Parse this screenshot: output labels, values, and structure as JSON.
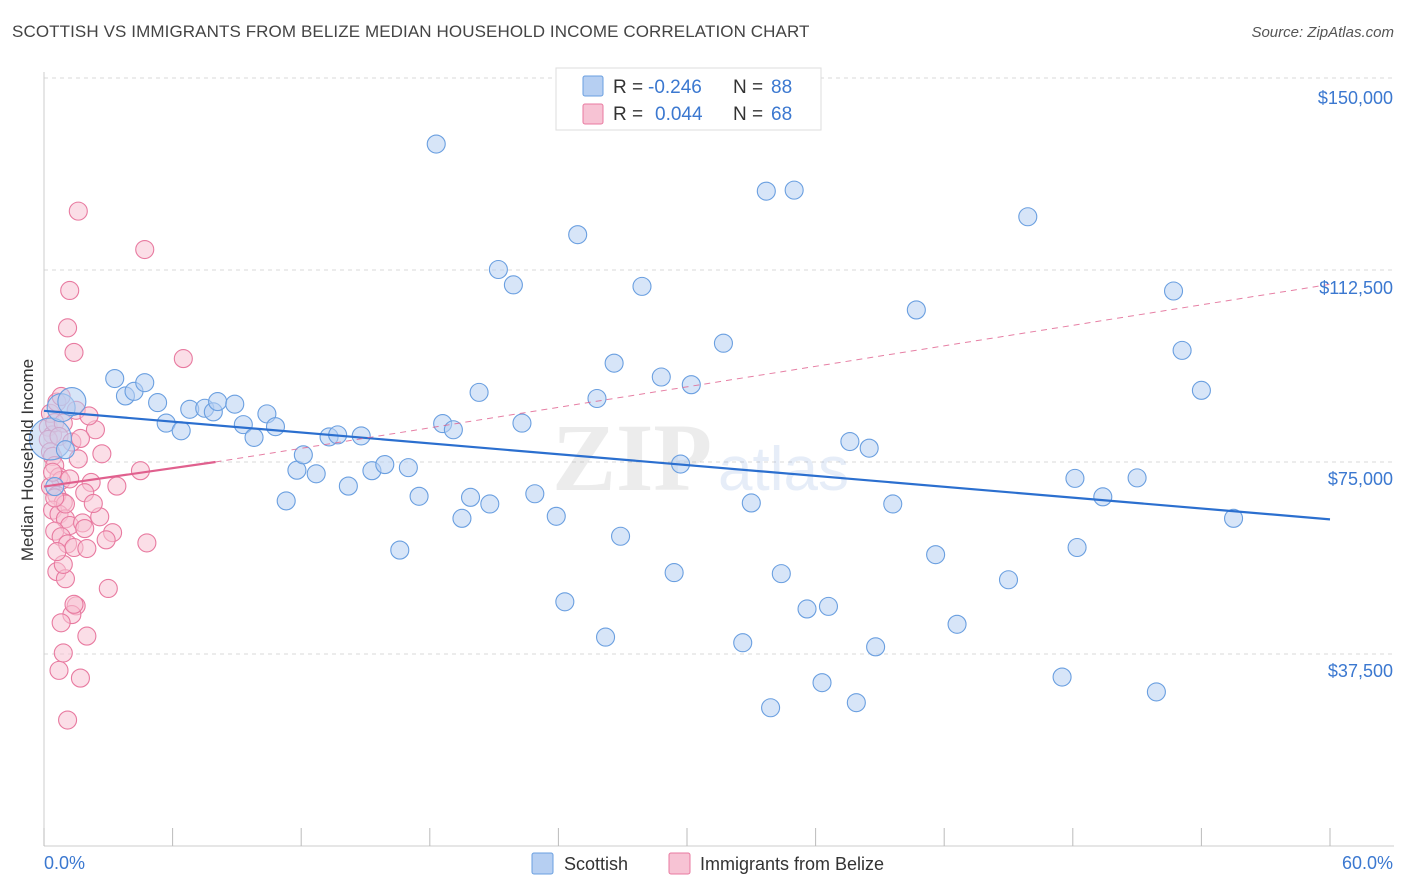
{
  "title": "SCOTTISH VS IMMIGRANTS FROM BELIZE MEDIAN HOUSEHOLD INCOME CORRELATION CHART",
  "source": "Source: ZipAtlas.com",
  "watermark": {
    "zip": "ZIP",
    "atlas": "atlas"
  },
  "legend_box": {
    "rows": [
      {
        "r_label": "R =",
        "r_value": "-0.246",
        "n_label": "N =",
        "n_value": "88"
      },
      {
        "r_label": "R =",
        "r_value": "0.044",
        "n_label": "N =",
        "n_value": "68"
      }
    ]
  },
  "bottom_legend": [
    "Scottish",
    "Immigrants from Belize"
  ],
  "colors": {
    "blue": "#6a9fe0",
    "blue_fill": "#b6cff2",
    "blue_line": "#2b6fcf",
    "pink": "#e87aa0",
    "pink_fill": "#f7c3d4",
    "pink_line": "#e0608e",
    "axis_text": "#3b78d0",
    "grid": "#d8d8d8"
  },
  "chart_data": {
    "type": "scatter",
    "title": "SCOTTISH VS IMMIGRANTS FROM BELIZE MEDIAN HOUSEHOLD INCOME CORRELATION CHART",
    "xlabel": "",
    "ylabel": "Median Household Income",
    "x_tick_labels": [
      "0.0%",
      "60.0%"
    ],
    "y_tick_labels": [
      "$37,500",
      "$75,000",
      "$112,500",
      "$150,000"
    ],
    "y_ticks": [
      37500,
      75000,
      112500,
      150000
    ],
    "xlim": [
      0,
      60
    ],
    "ylim": [
      0,
      154000
    ],
    "grid": "horizontal dashed",
    "legend_position": "top-center",
    "series": [
      {
        "name": "Scottish",
        "color": "#6a9fe0",
        "r": -0.246,
        "n": 88,
        "trend": {
          "x": [
            0,
            60
          ],
          "y": [
            85000,
            63800
          ],
          "style": "solid"
        },
        "points": [
          {
            "x": 0.3,
            "y": 79500,
            "s": 3
          },
          {
            "x": 0.8,
            "y": 85600,
            "s": 2
          },
          {
            "x": 1.3,
            "y": 86800,
            "s": 2
          },
          {
            "x": 0.5,
            "y": 70200,
            "s": 1
          },
          {
            "x": 1.0,
            "y": 77400,
            "s": 1
          },
          {
            "x": 3.3,
            "y": 91300,
            "s": 1
          },
          {
            "x": 3.8,
            "y": 87900,
            "s": 1
          },
          {
            "x": 4.2,
            "y": 88800,
            "s": 1
          },
          {
            "x": 4.7,
            "y": 90500,
            "s": 1
          },
          {
            "x": 5.3,
            "y": 86600,
            "s": 1
          },
          {
            "x": 5.7,
            "y": 82600,
            "s": 1
          },
          {
            "x": 6.4,
            "y": 81100,
            "s": 1
          },
          {
            "x": 6.8,
            "y": 85300,
            "s": 1
          },
          {
            "x": 7.5,
            "y": 85500,
            "s": 1
          },
          {
            "x": 7.9,
            "y": 84800,
            "s": 1
          },
          {
            "x": 8.1,
            "y": 86800,
            "s": 1
          },
          {
            "x": 8.9,
            "y": 86300,
            "s": 1
          },
          {
            "x": 9.3,
            "y": 82300,
            "s": 1
          },
          {
            "x": 9.8,
            "y": 79800,
            "s": 1
          },
          {
            "x": 10.4,
            "y": 84400,
            "s": 1
          },
          {
            "x": 10.8,
            "y": 81900,
            "s": 1
          },
          {
            "x": 11.3,
            "y": 67400,
            "s": 1
          },
          {
            "x": 11.8,
            "y": 73400,
            "s": 1
          },
          {
            "x": 12.1,
            "y": 76400,
            "s": 1
          },
          {
            "x": 12.7,
            "y": 72700,
            "s": 1
          },
          {
            "x": 13.3,
            "y": 79900,
            "s": 1
          },
          {
            "x": 13.7,
            "y": 80300,
            "s": 1
          },
          {
            "x": 14.2,
            "y": 70300,
            "s": 1
          },
          {
            "x": 14.8,
            "y": 80100,
            "s": 1
          },
          {
            "x": 15.3,
            "y": 73300,
            "s": 1
          },
          {
            "x": 15.9,
            "y": 74500,
            "s": 1
          },
          {
            "x": 16.6,
            "y": 57800,
            "s": 1
          },
          {
            "x": 17.0,
            "y": 73900,
            "s": 1
          },
          {
            "x": 17.5,
            "y": 68300,
            "s": 1
          },
          {
            "x": 18.3,
            "y": 137100,
            "s": 1
          },
          {
            "x": 18.6,
            "y": 82500,
            "s": 1
          },
          {
            "x": 19.1,
            "y": 81300,
            "s": 1
          },
          {
            "x": 19.5,
            "y": 64000,
            "s": 1
          },
          {
            "x": 19.9,
            "y": 68100,
            "s": 1
          },
          {
            "x": 20.3,
            "y": 88600,
            "s": 1
          },
          {
            "x": 20.8,
            "y": 66800,
            "s": 1
          },
          {
            "x": 21.2,
            "y": 112600,
            "s": 1
          },
          {
            "x": 21.9,
            "y": 109600,
            "s": 1
          },
          {
            "x": 22.3,
            "y": 82600,
            "s": 1
          },
          {
            "x": 22.9,
            "y": 68800,
            "s": 1
          },
          {
            "x": 23.9,
            "y": 64400,
            "s": 1
          },
          {
            "x": 24.3,
            "y": 47700,
            "s": 1
          },
          {
            "x": 24.9,
            "y": 119400,
            "s": 1
          },
          {
            "x": 25.8,
            "y": 87400,
            "s": 1
          },
          {
            "x": 26.2,
            "y": 40800,
            "s": 1
          },
          {
            "x": 26.6,
            "y": 94300,
            "s": 1
          },
          {
            "x": 26.9,
            "y": 60500,
            "s": 1
          },
          {
            "x": 27.9,
            "y": 109300,
            "s": 1
          },
          {
            "x": 28.8,
            "y": 91600,
            "s": 1
          },
          {
            "x": 29.4,
            "y": 53400,
            "s": 1
          },
          {
            "x": 29.7,
            "y": 74600,
            "s": 1
          },
          {
            "x": 30.2,
            "y": 90100,
            "s": 1
          },
          {
            "x": 31.7,
            "y": 98200,
            "s": 1
          },
          {
            "x": 32.6,
            "y": 39700,
            "s": 1
          },
          {
            "x": 33.0,
            "y": 67000,
            "s": 1
          },
          {
            "x": 33.7,
            "y": 127900,
            "s": 1
          },
          {
            "x": 33.9,
            "y": 27000,
            "s": 1
          },
          {
            "x": 34.4,
            "y": 53200,
            "s": 1
          },
          {
            "x": 35.0,
            "y": 128100,
            "s": 1
          },
          {
            "x": 35.6,
            "y": 46300,
            "s": 1
          },
          {
            "x": 36.3,
            "y": 31900,
            "s": 1
          },
          {
            "x": 36.6,
            "y": 46800,
            "s": 1
          },
          {
            "x": 37.6,
            "y": 79000,
            "s": 1
          },
          {
            "x": 37.9,
            "y": 28000,
            "s": 1
          },
          {
            "x": 38.5,
            "y": 77700,
            "s": 1
          },
          {
            "x": 38.8,
            "y": 38900,
            "s": 1
          },
          {
            "x": 39.6,
            "y": 66800,
            "s": 1
          },
          {
            "x": 40.7,
            "y": 104700,
            "s": 1
          },
          {
            "x": 41.6,
            "y": 56900,
            "s": 1
          },
          {
            "x": 42.6,
            "y": 43300,
            "s": 1
          },
          {
            "x": 45.0,
            "y": 52000,
            "s": 1
          },
          {
            "x": 45.9,
            "y": 122900,
            "s": 1
          },
          {
            "x": 47.5,
            "y": 33000,
            "s": 1
          },
          {
            "x": 48.1,
            "y": 71800,
            "s": 1
          },
          {
            "x": 48.2,
            "y": 58300,
            "s": 1
          },
          {
            "x": 49.4,
            "y": 68200,
            "s": 1
          },
          {
            "x": 51.0,
            "y": 71900,
            "s": 1
          },
          {
            "x": 51.9,
            "y": 30100,
            "s": 1
          },
          {
            "x": 52.7,
            "y": 108400,
            "s": 1
          },
          {
            "x": 53.1,
            "y": 96800,
            "s": 1
          },
          {
            "x": 54.0,
            "y": 89000,
            "s": 1
          },
          {
            "x": 55.5,
            "y": 64000,
            "s": 1
          }
        ]
      },
      {
        "name": "Immigrants from Belize",
        "color": "#e87aa0",
        "r": 0.044,
        "n": 68,
        "trend": {
          "x": [
            0,
            8
          ],
          "y": [
            70200,
            75000
          ],
          "style": "solid",
          "dashed_extension": {
            "x": [
              8,
              60
            ],
            "y": [
              75000,
              109700
            ]
          }
        },
        "points": [
          {
            "x": 0.2,
            "y": 81800
          },
          {
            "x": 0.3,
            "y": 84500
          },
          {
            "x": 0.4,
            "y": 80300
          },
          {
            "x": 0.2,
            "y": 79400
          },
          {
            "x": 0.5,
            "y": 82700
          },
          {
            "x": 0.6,
            "y": 86700
          },
          {
            "x": 0.3,
            "y": 77000
          },
          {
            "x": 0.4,
            "y": 76100
          },
          {
            "x": 0.5,
            "y": 74300
          },
          {
            "x": 0.7,
            "y": 72100
          },
          {
            "x": 0.8,
            "y": 71400
          },
          {
            "x": 0.3,
            "y": 70200
          },
          {
            "x": 0.6,
            "y": 68500
          },
          {
            "x": 0.9,
            "y": 67100
          },
          {
            "x": 0.4,
            "y": 65600
          },
          {
            "x": 0.7,
            "y": 64800
          },
          {
            "x": 1.0,
            "y": 63900
          },
          {
            "x": 1.2,
            "y": 62600
          },
          {
            "x": 0.5,
            "y": 61500
          },
          {
            "x": 0.8,
            "y": 60400
          },
          {
            "x": 1.1,
            "y": 59000
          },
          {
            "x": 1.4,
            "y": 58300
          },
          {
            "x": 0.6,
            "y": 53600
          },
          {
            "x": 1.0,
            "y": 52200
          },
          {
            "x": 1.5,
            "y": 46900
          },
          {
            "x": 1.3,
            "y": 45200
          },
          {
            "x": 0.8,
            "y": 43600
          },
          {
            "x": 2.0,
            "y": 41000
          },
          {
            "x": 0.9,
            "y": 37700
          },
          {
            "x": 0.7,
            "y": 34300
          },
          {
            "x": 1.7,
            "y": 32800
          },
          {
            "x": 1.1,
            "y": 24600
          },
          {
            "x": 1.6,
            "y": 124000
          },
          {
            "x": 4.7,
            "y": 116500
          },
          {
            "x": 1.2,
            "y": 108500
          },
          {
            "x": 1.1,
            "y": 101200
          },
          {
            "x": 1.4,
            "y": 96400
          },
          {
            "x": 6.5,
            "y": 95200
          },
          {
            "x": 0.8,
            "y": 87800
          },
          {
            "x": 1.5,
            "y": 85100
          },
          {
            "x": 0.9,
            "y": 82600
          },
          {
            "x": 2.4,
            "y": 81300
          },
          {
            "x": 0.7,
            "y": 80000
          },
          {
            "x": 1.3,
            "y": 78900
          },
          {
            "x": 2.7,
            "y": 76600
          },
          {
            "x": 1.6,
            "y": 75600
          },
          {
            "x": 4.5,
            "y": 73300
          },
          {
            "x": 2.2,
            "y": 71000
          },
          {
            "x": 3.4,
            "y": 70300
          },
          {
            "x": 1.9,
            "y": 69000
          },
          {
            "x": 1.0,
            "y": 66800
          },
          {
            "x": 2.6,
            "y": 64300
          },
          {
            "x": 1.8,
            "y": 63100
          },
          {
            "x": 3.2,
            "y": 61200
          },
          {
            "x": 2.9,
            "y": 59800
          },
          {
            "x": 4.8,
            "y": 59200
          },
          {
            "x": 2.0,
            "y": 58100
          },
          {
            "x": 3.0,
            "y": 50300
          },
          {
            "x": 1.4,
            "y": 47200
          },
          {
            "x": 0.9,
            "y": 55000
          },
          {
            "x": 0.4,
            "y": 73000
          },
          {
            "x": 1.7,
            "y": 79600
          },
          {
            "x": 2.1,
            "y": 84000
          },
          {
            "x": 0.6,
            "y": 57500
          },
          {
            "x": 1.2,
            "y": 71700
          },
          {
            "x": 2.3,
            "y": 66900
          },
          {
            "x": 1.9,
            "y": 62000
          },
          {
            "x": 0.5,
            "y": 68000
          }
        ]
      }
    ]
  }
}
